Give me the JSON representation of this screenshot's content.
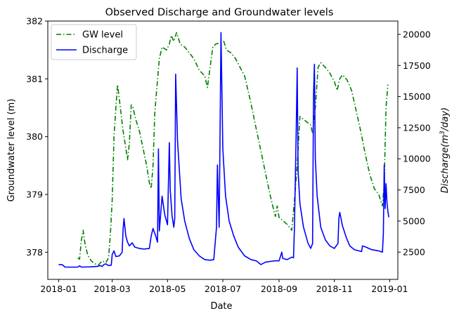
{
  "chart_data": {
    "type": "line",
    "title": "Observed Discharge and Groundwater levels",
    "xlabel": "Date",
    "ylabel_left": "Groundwater level (m)",
    "ylabel_right": "Discharge(m³/day)",
    "x_range": [
      "2017-12-20",
      "2019-01-10"
    ],
    "x_ticks": [
      "2018-01",
      "2018-03",
      "2018-05",
      "2018-07",
      "2018-09",
      "2018-11",
      "2019-01"
    ],
    "x_tick_dates": [
      "2018-01-01",
      "2018-03-01",
      "2018-05-01",
      "2018-07-01",
      "2018-09-01",
      "2018-11-01",
      "2019-01-01"
    ],
    "ylim_left": [
      377.53,
      382.0
    ],
    "y_ticks_left": [
      378,
      379,
      380,
      381,
      382
    ],
    "ylim_right": [
      311,
      21070
    ],
    "y_ticks_right": [
      2500,
      5000,
      7500,
      10000,
      12500,
      15000,
      17500,
      20000
    ],
    "legend": {
      "placement": "upper-left",
      "entries": [
        "GW level",
        "Discharge"
      ]
    },
    "grid": false,
    "colors": {
      "gw": "#008000",
      "discharge": "#0000ff"
    },
    "series": [
      {
        "name": "GW level",
        "axis": "left",
        "style": "dashdot",
        "points": [
          [
            "2018-01-22",
            377.9
          ],
          [
            "2018-01-24",
            377.88
          ],
          [
            "2018-01-26",
            378.2
          ],
          [
            "2018-01-28",
            378.38
          ],
          [
            "2018-01-30",
            378.15
          ],
          [
            "2018-02-02",
            377.95
          ],
          [
            "2018-02-06",
            377.85
          ],
          [
            "2018-02-10",
            377.8
          ],
          [
            "2018-02-14",
            377.78
          ],
          [
            "2018-02-18",
            377.85
          ],
          [
            "2018-02-22",
            377.82
          ],
          [
            "2018-02-25",
            377.9
          ],
          [
            "2018-02-27",
            378.3
          ],
          [
            "2018-03-01",
            378.9
          ],
          [
            "2018-03-03",
            380.0
          ],
          [
            "2018-03-05",
            380.5
          ],
          [
            "2018-03-07",
            380.9
          ],
          [
            "2018-03-10",
            380.5
          ],
          [
            "2018-03-13",
            380.1
          ],
          [
            "2018-03-16",
            379.8
          ],
          [
            "2018-03-18",
            379.6
          ],
          [
            "2018-03-20",
            379.9
          ],
          [
            "2018-03-22",
            380.55
          ],
          [
            "2018-03-24",
            380.5
          ],
          [
            "2018-03-27",
            380.3
          ],
          [
            "2018-03-31",
            380.1
          ],
          [
            "2018-04-04",
            379.8
          ],
          [
            "2018-04-08",
            379.5
          ],
          [
            "2018-04-11",
            379.2
          ],
          [
            "2018-04-13",
            379.1
          ],
          [
            "2018-04-15",
            379.5
          ],
          [
            "2018-04-17",
            380.4
          ],
          [
            "2018-04-19",
            380.8
          ],
          [
            "2018-04-22",
            381.35
          ],
          [
            "2018-04-25",
            381.55
          ],
          [
            "2018-04-30",
            381.5
          ],
          [
            "2018-05-03",
            381.6
          ],
          [
            "2018-05-05",
            381.75
          ],
          [
            "2018-05-08",
            381.65
          ],
          [
            "2018-05-11",
            381.8
          ],
          [
            "2018-05-15",
            381.6
          ],
          [
            "2018-05-20",
            381.55
          ],
          [
            "2018-05-25",
            381.45
          ],
          [
            "2018-05-30",
            381.35
          ],
          [
            "2018-06-05",
            381.15
          ],
          [
            "2018-06-11",
            381.05
          ],
          [
            "2018-06-14",
            380.85
          ],
          [
            "2018-06-17",
            381.2
          ],
          [
            "2018-06-20",
            381.55
          ],
          [
            "2018-06-23",
            381.6
          ],
          [
            "2018-06-27",
            381.62
          ],
          [
            "2018-07-02",
            381.65
          ],
          [
            "2018-07-05",
            381.5
          ],
          [
            "2018-07-10",
            381.45
          ],
          [
            "2018-07-15",
            381.35
          ],
          [
            "2018-07-20",
            381.2
          ],
          [
            "2018-07-25",
            381.05
          ],
          [
            "2018-07-31",
            380.65
          ],
          [
            "2018-08-06",
            380.2
          ],
          [
            "2018-08-12",
            379.75
          ],
          [
            "2018-08-18",
            379.3
          ],
          [
            "2018-08-22",
            379.0
          ],
          [
            "2018-08-25",
            378.8
          ],
          [
            "2018-08-28",
            378.62
          ],
          [
            "2018-08-30",
            378.8
          ],
          [
            "2018-09-01",
            378.6
          ],
          [
            "2018-09-05",
            378.55
          ],
          [
            "2018-09-10",
            378.48
          ],
          [
            "2018-09-15",
            378.38
          ],
          [
            "2018-09-18",
            378.9
          ],
          [
            "2018-09-21",
            379.5
          ],
          [
            "2018-09-24",
            380.35
          ],
          [
            "2018-09-28",
            380.3
          ],
          [
            "2018-10-02",
            380.25
          ],
          [
            "2018-10-06",
            380.2
          ],
          [
            "2018-10-08",
            380.05
          ],
          [
            "2018-10-11",
            380.5
          ],
          [
            "2018-10-14",
            381.2
          ],
          [
            "2018-10-17",
            381.28
          ],
          [
            "2018-10-22",
            381.2
          ],
          [
            "2018-10-27",
            381.1
          ],
          [
            "2018-11-01",
            380.95
          ],
          [
            "2018-11-04",
            380.8
          ],
          [
            "2018-11-07",
            381.0
          ],
          [
            "2018-11-10",
            381.07
          ],
          [
            "2018-11-15",
            380.98
          ],
          [
            "2018-11-20",
            380.8
          ],
          [
            "2018-11-25",
            380.45
          ],
          [
            "2018-11-30",
            380.1
          ],
          [
            "2018-12-05",
            379.7
          ],
          [
            "2018-12-10",
            379.35
          ],
          [
            "2018-12-15",
            379.1
          ],
          [
            "2018-12-20",
            379.0
          ],
          [
            "2018-12-24",
            378.8
          ],
          [
            "2018-12-26",
            379.2
          ],
          [
            "2018-12-28",
            380.5
          ],
          [
            "2018-12-30",
            380.9
          ]
        ]
      },
      {
        "name": "Discharge",
        "axis": "right",
        "style": "solid",
        "points": [
          [
            "2018-01-01",
            1500
          ],
          [
            "2018-01-05",
            1490
          ],
          [
            "2018-01-08",
            1300
          ],
          [
            "2018-01-15",
            1300
          ],
          [
            "2018-01-22",
            1300
          ],
          [
            "2018-01-24",
            1400
          ],
          [
            "2018-01-26",
            1300
          ],
          [
            "2018-02-05",
            1320
          ],
          [
            "2018-02-12",
            1350
          ],
          [
            "2018-02-16",
            1420
          ],
          [
            "2018-02-18",
            1350
          ],
          [
            "2018-02-20",
            1520
          ],
          [
            "2018-02-22",
            1560
          ],
          [
            "2018-02-25",
            1420
          ],
          [
            "2018-02-28",
            1450
          ],
          [
            "2018-03-01",
            2300
          ],
          [
            "2018-03-03",
            2600
          ],
          [
            "2018-03-05",
            2150
          ],
          [
            "2018-03-09",
            2200
          ],
          [
            "2018-03-12",
            2500
          ],
          [
            "2018-03-13",
            4300
          ],
          [
            "2018-03-14",
            5200
          ],
          [
            "2018-03-16",
            3800
          ],
          [
            "2018-03-18",
            3300
          ],
          [
            "2018-03-20",
            3000
          ],
          [
            "2018-03-23",
            3250
          ],
          [
            "2018-03-26",
            2900
          ],
          [
            "2018-03-31",
            2800
          ],
          [
            "2018-04-05",
            2750
          ],
          [
            "2018-04-11",
            2800
          ],
          [
            "2018-04-13",
            3800
          ],
          [
            "2018-04-15",
            4400
          ],
          [
            "2018-04-18",
            3800
          ],
          [
            "2018-04-20",
            3300
          ],
          [
            "2018-04-21",
            10800
          ],
          [
            "2018-04-22",
            4200
          ],
          [
            "2018-04-25",
            7000
          ],
          [
            "2018-04-28",
            5500
          ],
          [
            "2018-05-01",
            4700
          ],
          [
            "2018-05-03",
            11300
          ],
          [
            "2018-05-04",
            7500
          ],
          [
            "2018-05-06",
            5400
          ],
          [
            "2018-05-08",
            4500
          ],
          [
            "2018-05-09",
            5200
          ],
          [
            "2018-05-10",
            16800
          ],
          [
            "2018-05-12",
            11500
          ],
          [
            "2018-05-16",
            6800
          ],
          [
            "2018-05-20",
            5000
          ],
          [
            "2018-05-25",
            3600
          ],
          [
            "2018-05-30",
            2700
          ],
          [
            "2018-06-05",
            2200
          ],
          [
            "2018-06-11",
            1900
          ],
          [
            "2018-06-17",
            1850
          ],
          [
            "2018-06-21",
            1900
          ],
          [
            "2018-06-24",
            4500
          ],
          [
            "2018-06-25",
            9500
          ],
          [
            "2018-06-26",
            7000
          ],
          [
            "2018-06-27",
            4500
          ],
          [
            "2018-06-29",
            20150
          ],
          [
            "2018-07-01",
            10800
          ],
          [
            "2018-07-04",
            7000
          ],
          [
            "2018-07-08",
            5000
          ],
          [
            "2018-07-13",
            3800
          ],
          [
            "2018-07-18",
            2900
          ],
          [
            "2018-07-25",
            2200
          ],
          [
            "2018-08-01",
            1900
          ],
          [
            "2018-08-07",
            1800
          ],
          [
            "2018-08-12",
            1500
          ],
          [
            "2018-08-17",
            1700
          ],
          [
            "2018-08-22",
            1750
          ],
          [
            "2018-08-27",
            1800
          ],
          [
            "2018-09-01",
            1800
          ],
          [
            "2018-09-04",
            2500
          ],
          [
            "2018-09-05",
            2000
          ],
          [
            "2018-09-10",
            1900
          ],
          [
            "2018-09-15",
            2100
          ],
          [
            "2018-09-17",
            2050
          ],
          [
            "2018-09-18",
            4500
          ],
          [
            "2018-09-20",
            12500
          ],
          [
            "2018-09-21",
            17300
          ],
          [
            "2018-09-22",
            9000
          ],
          [
            "2018-09-24",
            6400
          ],
          [
            "2018-09-28",
            4500
          ],
          [
            "2018-10-03",
            3200
          ],
          [
            "2018-10-06",
            2800
          ],
          [
            "2018-10-08",
            3200
          ],
          [
            "2018-10-09",
            15000
          ],
          [
            "2018-10-10",
            17600
          ],
          [
            "2018-10-11",
            10000
          ],
          [
            "2018-10-13",
            7000
          ],
          [
            "2018-10-17",
            4500
          ],
          [
            "2018-10-22",
            3500
          ],
          [
            "2018-10-27",
            3000
          ],
          [
            "2018-11-01",
            2800
          ],
          [
            "2018-11-05",
            3200
          ],
          [
            "2018-11-06",
            5200
          ],
          [
            "2018-11-07",
            5700
          ],
          [
            "2018-11-10",
            4600
          ],
          [
            "2018-11-14",
            3700
          ],
          [
            "2018-11-18",
            3000
          ],
          [
            "2018-11-23",
            2700
          ],
          [
            "2018-11-28",
            2600
          ],
          [
            "2018-12-01",
            2550
          ],
          [
            "2018-12-02",
            3000
          ],
          [
            "2018-12-06",
            2900
          ],
          [
            "2018-12-12",
            2700
          ],
          [
            "2018-12-20",
            2600
          ],
          [
            "2018-12-24",
            2500
          ],
          [
            "2018-12-25",
            4000
          ],
          [
            "2018-12-26",
            9500
          ],
          [
            "2018-12-27",
            6000
          ],
          [
            "2018-12-28",
            8000
          ],
          [
            "2018-12-29",
            6500
          ],
          [
            "2018-12-30",
            5800
          ],
          [
            "2018-12-31",
            5300
          ]
        ]
      }
    ]
  }
}
